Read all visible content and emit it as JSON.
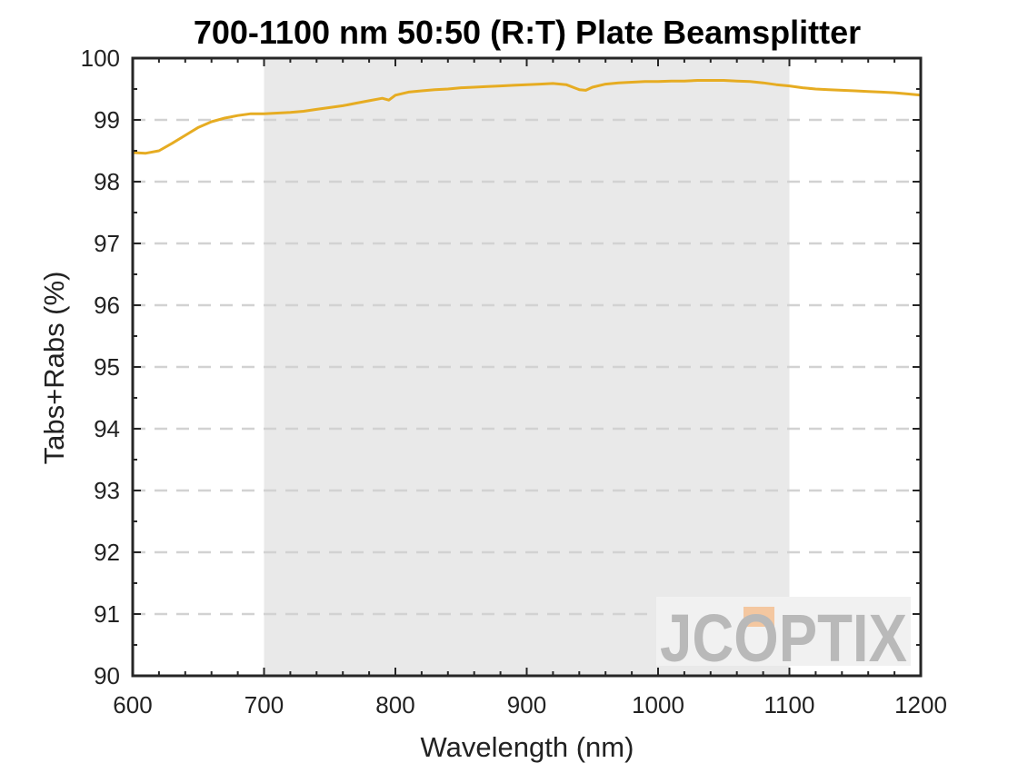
{
  "chart_data": {
    "type": "line",
    "title": "700-1100 nm 50:50 (R:T) Plate Beamsplitter",
    "xlabel": "Wavelength (nm)",
    "ylabel": "Tabs+Rabs (%)",
    "xlim": [
      600,
      1200
    ],
    "ylim": [
      90,
      100
    ],
    "xticks": [
      600,
      700,
      800,
      900,
      1000,
      1100,
      1200
    ],
    "yticks": [
      90,
      91,
      92,
      93,
      94,
      95,
      96,
      97,
      98,
      99,
      100
    ],
    "grid": "horizontal dashed",
    "highlight_band": [
      700,
      1100
    ],
    "series": [
      {
        "color": "#E6AC22",
        "x": [
          600,
          610,
          620,
          630,
          640,
          650,
          660,
          670,
          680,
          690,
          700,
          710,
          720,
          730,
          740,
          750,
          760,
          770,
          780,
          790,
          795,
          800,
          810,
          820,
          830,
          840,
          850,
          860,
          870,
          880,
          890,
          900,
          910,
          920,
          930,
          940,
          945,
          950,
          960,
          970,
          980,
          990,
          1000,
          1010,
          1020,
          1030,
          1040,
          1050,
          1060,
          1070,
          1080,
          1090,
          1100,
          1110,
          1120,
          1130,
          1140,
          1150,
          1160,
          1170,
          1180,
          1190,
          1200
        ],
        "y": [
          98.47,
          98.46,
          98.5,
          98.62,
          98.75,
          98.88,
          98.97,
          99.03,
          99.07,
          99.1,
          99.1,
          99.11,
          99.12,
          99.14,
          99.17,
          99.2,
          99.23,
          99.27,
          99.31,
          99.35,
          99.32,
          99.4,
          99.45,
          99.47,
          99.49,
          99.5,
          99.52,
          99.53,
          99.54,
          99.55,
          99.56,
          99.57,
          99.58,
          99.59,
          99.57,
          99.49,
          99.48,
          99.53,
          99.58,
          99.6,
          99.61,
          99.62,
          99.62,
          99.63,
          99.63,
          99.64,
          99.64,
          99.64,
          99.63,
          99.62,
          99.6,
          99.57,
          99.55,
          99.52,
          99.5,
          99.49,
          99.48,
          99.47,
          99.46,
          99.45,
          99.44,
          99.42,
          99.4
        ]
      }
    ]
  },
  "watermark": {
    "brand": "JCOPTIX",
    "accent_color": "#F4C7A0"
  }
}
